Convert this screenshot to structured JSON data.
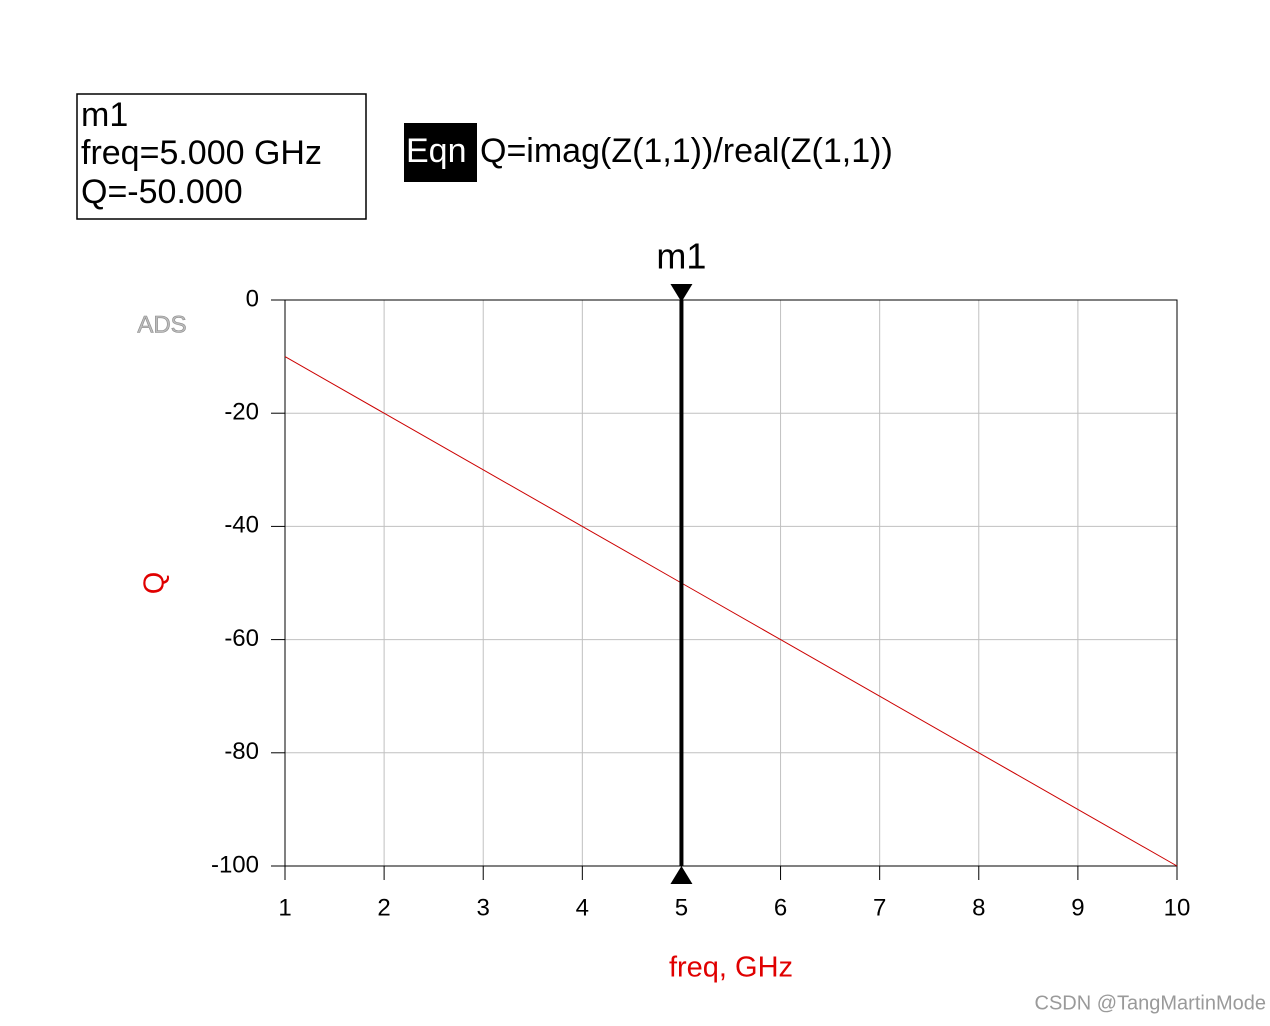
{
  "marker_box": {
    "name": "m1",
    "lines": [
      "freq=5.000 GHz",
      "Q=-50.000"
    ]
  },
  "equation": {
    "tag": "Eqn",
    "text": "Q=imag(Z(1,1))/real(Z(1,1))"
  },
  "chart_data": {
    "type": "line",
    "x": [
      1,
      2,
      3,
      4,
      5,
      6,
      7,
      8,
      9,
      10
    ],
    "series": [
      {
        "color": "#cc0000",
        "values": [
          -10,
          -20,
          -30,
          -40,
          -50,
          -60,
          -70,
          -80,
          -90,
          -100
        ]
      }
    ],
    "xlabel": "freq, GHz",
    "ylabel": "Q",
    "xlim": [
      1,
      10
    ],
    "ylim": [
      -100,
      0
    ],
    "xticks": [
      1,
      2,
      3,
      4,
      5,
      6,
      7,
      8,
      9,
      10
    ],
    "yticks": [
      0,
      -20,
      -40,
      -60,
      -80,
      -100
    ],
    "grid": true,
    "marker": {
      "label": "m1",
      "x": 5
    },
    "watermark": "ADS"
  },
  "footer": "CSDN @TangMartinMode"
}
